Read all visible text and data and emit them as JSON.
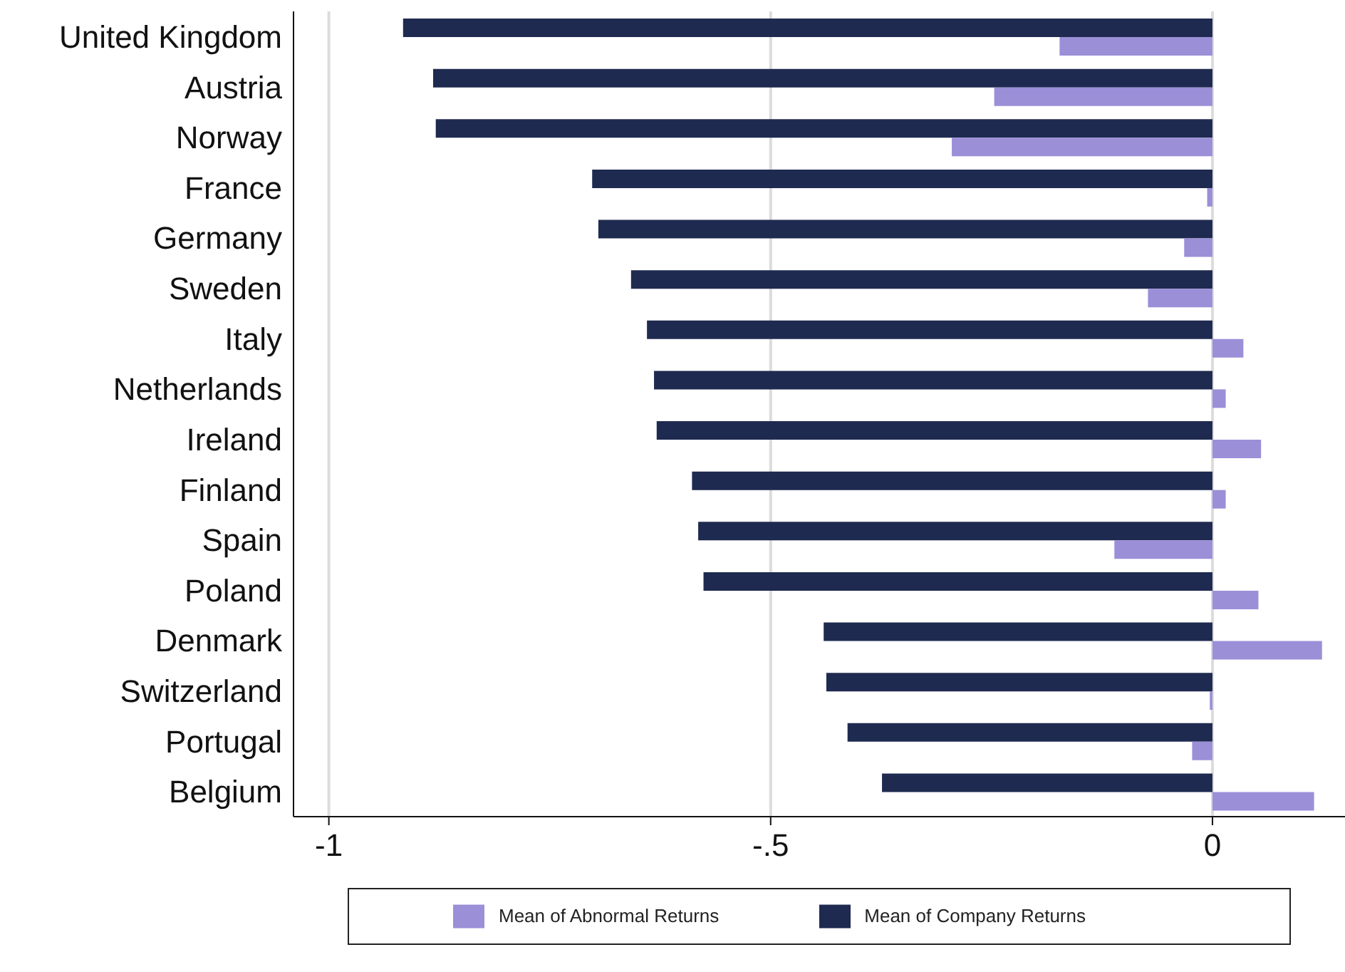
{
  "chart_data": {
    "type": "bar",
    "orientation": "horizontal",
    "categories": [
      "United Kingdom",
      "Austria",
      "Norway",
      "France",
      "Germany",
      "Sweden",
      "Italy",
      "Netherlands",
      "Ireland",
      "Finland",
      "Spain",
      "Poland",
      "Denmark",
      "Switzerland",
      "Portugal",
      "Belgium"
    ],
    "series": [
      {
        "name": "Mean of Company Returns",
        "color": "#1f2a50",
        "values": [
          -0.916,
          -0.882,
          -0.879,
          -0.702,
          -0.695,
          -0.658,
          -0.64,
          -0.632,
          -0.629,
          -0.589,
          -0.582,
          -0.576,
          -0.44,
          -0.437,
          -0.413,
          -0.374
        ]
      },
      {
        "name": "Mean of Abnormal Returns",
        "color": "#9b8fd8",
        "values": [
          -0.173,
          -0.247,
          -0.295,
          -0.006,
          -0.032,
          -0.073,
          0.035,
          0.015,
          0.055,
          0.015,
          -0.111,
          0.052,
          0.124,
          -0.003,
          -0.023,
          0.115
        ]
      }
    ],
    "xlim": [
      -1.04,
      0.15
    ],
    "xticks": [
      -1,
      {
        "value": -0.5,
        "label": "-.5"
      },
      0
    ],
    "grid": "x",
    "legend": "bottom"
  }
}
